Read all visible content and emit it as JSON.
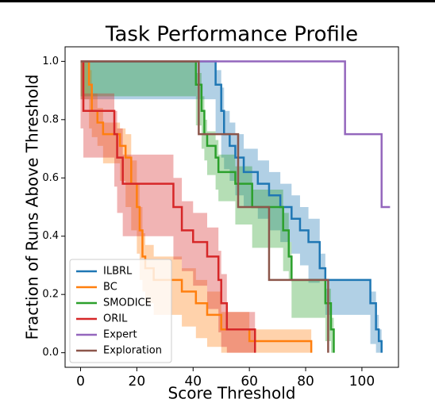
{
  "chart_data": {
    "type": "line",
    "drawstyle": "steps-post",
    "title": "Task Performance Profile",
    "xlabel": "Score Threshold",
    "ylabel": "Fraction of Runs Above Threshold",
    "xlim": [
      -5.5,
      113
    ],
    "ylim": [
      -0.05,
      1.05
    ],
    "xticks": [
      0,
      20,
      40,
      60,
      80,
      100
    ],
    "yticks": [
      {
        "value": 0,
        "label": "0.0"
      },
      {
        "value": 0.2,
        "label": "0.2"
      },
      {
        "value": 0.4,
        "label": "0.4"
      },
      {
        "value": 0.6,
        "label": "0.6"
      },
      {
        "value": 0.8,
        "label": "0.8"
      },
      {
        "value": 1,
        "label": "1.0"
      }
    ],
    "legend": "lower left",
    "series": [
      {
        "name": "ILBRL",
        "color": "#1f77b4",
        "x": [
          0,
          48,
          50,
          51,
          53,
          55,
          58,
          63,
          67,
          71,
          75,
          78,
          81,
          85,
          87,
          103,
          105,
          106,
          107
        ],
        "values": [
          1,
          0.92,
          0.83,
          0.75,
          0.71,
          0.67,
          0.62,
          0.58,
          0.54,
          0.5,
          0.46,
          0.42,
          0.38,
          0.29,
          0.25,
          0.17,
          0.08,
          0.04,
          0
        ],
        "ci": [
          0,
          0.05,
          0.08,
          0.08,
          0.08,
          0.08,
          0.08,
          0.08,
          0.08,
          0.08,
          0.08,
          0.08,
          0.08,
          0.05,
          0,
          0.04,
          0.05,
          0.04,
          0
        ]
      },
      {
        "name": "BC",
        "color": "#ff7f0e",
        "x": [
          0,
          3,
          4,
          6,
          8,
          14,
          16,
          18,
          20,
          21,
          22,
          23,
          26,
          36,
          41,
          45,
          50,
          60,
          82
        ],
        "values": [
          1,
          0.92,
          0.83,
          0.79,
          0.75,
          0.71,
          0.67,
          0.58,
          0.5,
          0.42,
          0.33,
          0.29,
          0.25,
          0.21,
          0.17,
          0.13,
          0.08,
          0.04,
          0
        ],
        "ci": [
          0,
          0.05,
          0.06,
          0.05,
          0.04,
          0.06,
          0.08,
          0.08,
          0.08,
          0.08,
          0.08,
          0.08,
          0.08,
          0.08,
          0.08,
          0.08,
          0.06,
          0.04,
          0
        ]
      },
      {
        "name": "SMODICE",
        "color": "#2ca02c",
        "x": [
          0,
          41,
          43,
          44,
          45,
          48,
          49,
          55,
          61,
          72,
          74,
          75,
          87,
          89,
          90
        ],
        "values": [
          1,
          0.92,
          0.83,
          0.75,
          0.71,
          0.67,
          0.62,
          0.58,
          0.5,
          0.42,
          0.33,
          0.25,
          0.17,
          0.08,
          0
        ],
        "ci": [
          0,
          0.04,
          0.05,
          0.05,
          0.05,
          0.06,
          0.06,
          0.06,
          0.06,
          0.06,
          0.05,
          0,
          0.05,
          0.04,
          0
        ]
      },
      {
        "name": "ORIL",
        "color": "#d62728",
        "x": [
          0,
          1,
          12,
          13,
          15,
          33,
          36,
          40,
          45,
          49,
          50,
          52,
          62
        ],
        "values": [
          1,
          0.83,
          0.75,
          0.67,
          0.58,
          0.5,
          0.42,
          0.38,
          0.33,
          0.25,
          0.17,
          0.08,
          0
        ],
        "ci": [
          0,
          0.06,
          0.08,
          0.1,
          0.1,
          0.1,
          0.1,
          0.1,
          0.1,
          0.1,
          0.1,
          0.06,
          0
        ]
      },
      {
        "name": "Expert",
        "color": "#9467bd",
        "x": [
          0,
          94,
          107,
          110
        ],
        "values": [
          1,
          0.75,
          0.5,
          0.5
        ]
      },
      {
        "name": "Exploration",
        "color": "#8c564b",
        "x": [
          0,
          42,
          56,
          67,
          88
        ],
        "values": [
          1,
          0.75,
          0.5,
          0.25,
          0
        ]
      }
    ]
  }
}
